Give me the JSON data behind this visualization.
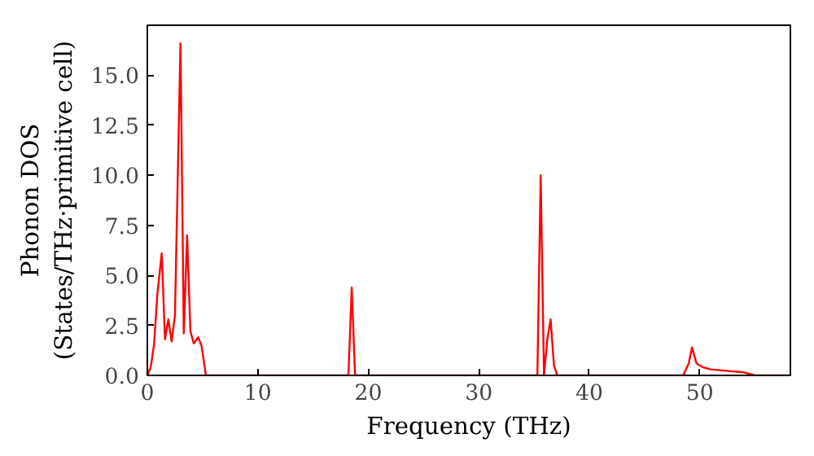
{
  "chart_data": {
    "type": "line",
    "xlabel": "Frequency (THz)",
    "ylabel": "Phonon DOS\n(States/THz·primitive cell)",
    "xlim": [
      0,
      58.2
    ],
    "ylim": [
      0,
      17.5
    ],
    "xticks": [
      0,
      10,
      20,
      30,
      40,
      50
    ],
    "yticks": [
      {
        "value": 0,
        "label": "0.0"
      },
      {
        "value": 2.5,
        "label": "2.5"
      },
      {
        "value": 5,
        "label": "5.0"
      },
      {
        "value": 7.5,
        "label": "7.5"
      },
      {
        "value": 10,
        "label": "10.0"
      },
      {
        "value": 12.5,
        "label": "12.5"
      },
      {
        "value": 15,
        "label": "15.0"
      }
    ],
    "grid": false,
    "series": [
      {
        "color": "#ff0000",
        "x": [
          0,
          0.3,
          0.6,
          0.9,
          1.3,
          1.6,
          1.9,
          2.2,
          2.5,
          3.0,
          3.3,
          3.6,
          3.9,
          4.2,
          4.6,
          4.9,
          5.3,
          6,
          10,
          18,
          18.2,
          18.5,
          18.8,
          19.1,
          25,
          35.1,
          35.3,
          35.6,
          35.9,
          36.2,
          36.5,
          36.8,
          37.1,
          45,
          48.5,
          49.0,
          49.3,
          49.7,
          50.3,
          51,
          52,
          53,
          54,
          55,
          58.2
        ],
        "values": [
          0,
          0.4,
          1.5,
          4.0,
          6.1,
          1.8,
          2.8,
          1.7,
          3.0,
          16.6,
          2.1,
          7.0,
          2.2,
          1.6,
          1.9,
          1.5,
          0,
          0,
          0,
          0,
          0,
          4.4,
          0,
          0,
          0,
          0,
          0,
          10.0,
          0,
          1.8,
          2.8,
          0.5,
          0,
          0,
          0,
          0.6,
          1.4,
          0.6,
          0.4,
          0.3,
          0.25,
          0.2,
          0.15,
          0,
          0
        ]
      }
    ]
  }
}
